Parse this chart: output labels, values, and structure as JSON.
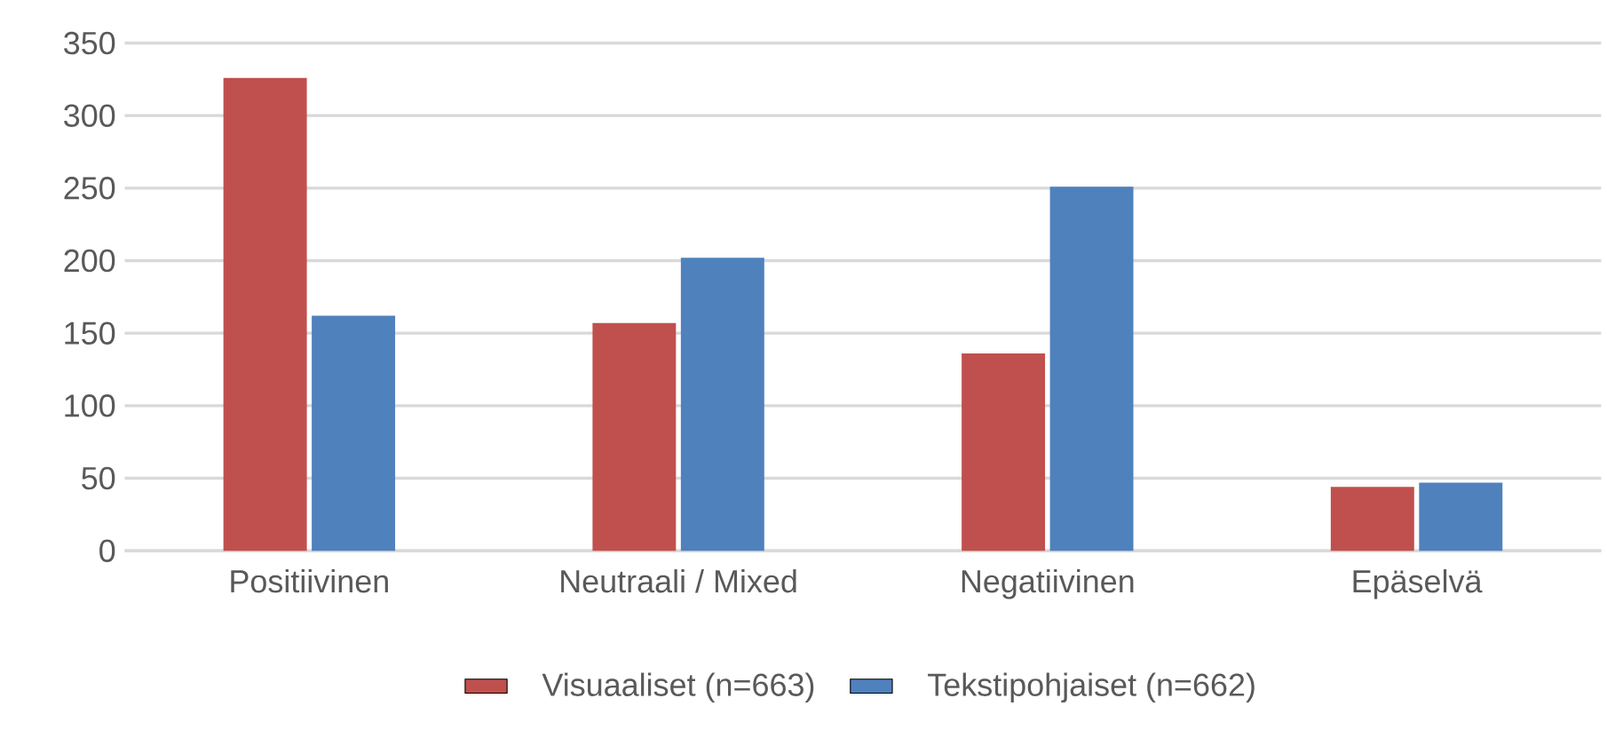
{
  "chart_data": {
    "type": "bar",
    "categories": [
      "Positiivinen",
      "Neutraali / Mixed",
      "Negatiivinen",
      "Epäselvä"
    ],
    "series": [
      {
        "name": "Visuaaliset (n=663)",
        "color": "#c0504d",
        "values": [
          326,
          157,
          136,
          44
        ]
      },
      {
        "name": "Tekstipohjaiset (n=662)",
        "color": "#4f81bd",
        "values": [
          162,
          202,
          251,
          47
        ]
      }
    ],
    "ylim": [
      0,
      350
    ],
    "yticks": [
      0,
      50,
      100,
      150,
      200,
      250,
      300,
      350
    ],
    "grid": "y",
    "legend": "bottom"
  }
}
